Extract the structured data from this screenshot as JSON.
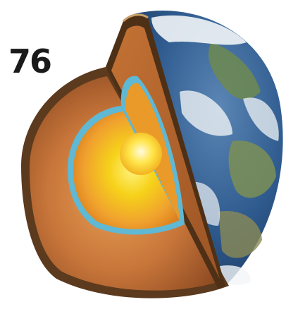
{
  "page_number": "76",
  "illustration": {
    "subject": "earth-cutaway-icon",
    "colors": {
      "ocean": "#2f5b8f",
      "land": "#6f8a4f",
      "clouds": "#f2f5f7",
      "crust_rim": "#5b3a1e",
      "mantle": "#b5682f",
      "mantle_light": "#d58a45",
      "core_boundary": "#5fb8d4",
      "outer_core": "#f0a12e",
      "inner_core": "#f6d21a"
    }
  }
}
